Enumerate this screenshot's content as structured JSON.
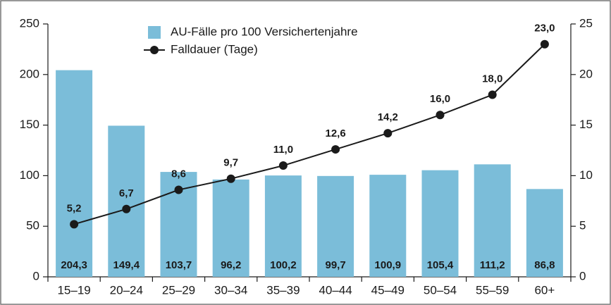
{
  "chart_data": {
    "type": "bar_line",
    "categories": [
      "15–19",
      "20–24",
      "25–29",
      "30–34",
      "35–39",
      "40–44",
      "45–49",
      "50–54",
      "55–59",
      "60+"
    ],
    "series": [
      {
        "name": "AU-Fälle pro 100 Versichertenjahre",
        "type": "bar",
        "color": "#7bbdd9",
        "values": [
          204.3,
          149.4,
          103.7,
          96.2,
          100.2,
          99.7,
          100.9,
          105.4,
          111.2,
          86.8
        ],
        "value_labels": [
          "204,3",
          "149,4",
          "103,7",
          "96,2",
          "100,2",
          "99,7",
          "100,9",
          "105,4",
          "111,2",
          "86,8"
        ]
      },
      {
        "name": "Falldauer (Tage)",
        "type": "line",
        "axis": "y2",
        "color": "#1a1a1a",
        "values": [
          5.2,
          6.7,
          8.6,
          9.7,
          11.0,
          12.6,
          14.2,
          16.0,
          18.0,
          23.0
        ],
        "value_labels": [
          "5,2",
          "6,7",
          "8,6",
          "9,7",
          "11,0",
          "12,6",
          "14,2",
          "16,0",
          "18,0",
          "23,0"
        ]
      }
    ],
    "ylim": [
      0,
      250
    ],
    "yticks": [
      0,
      50,
      100,
      150,
      200,
      250
    ],
    "y2lim": [
      0,
      25
    ],
    "y2ticks": [
      0,
      5,
      10,
      15,
      20,
      25
    ]
  }
}
